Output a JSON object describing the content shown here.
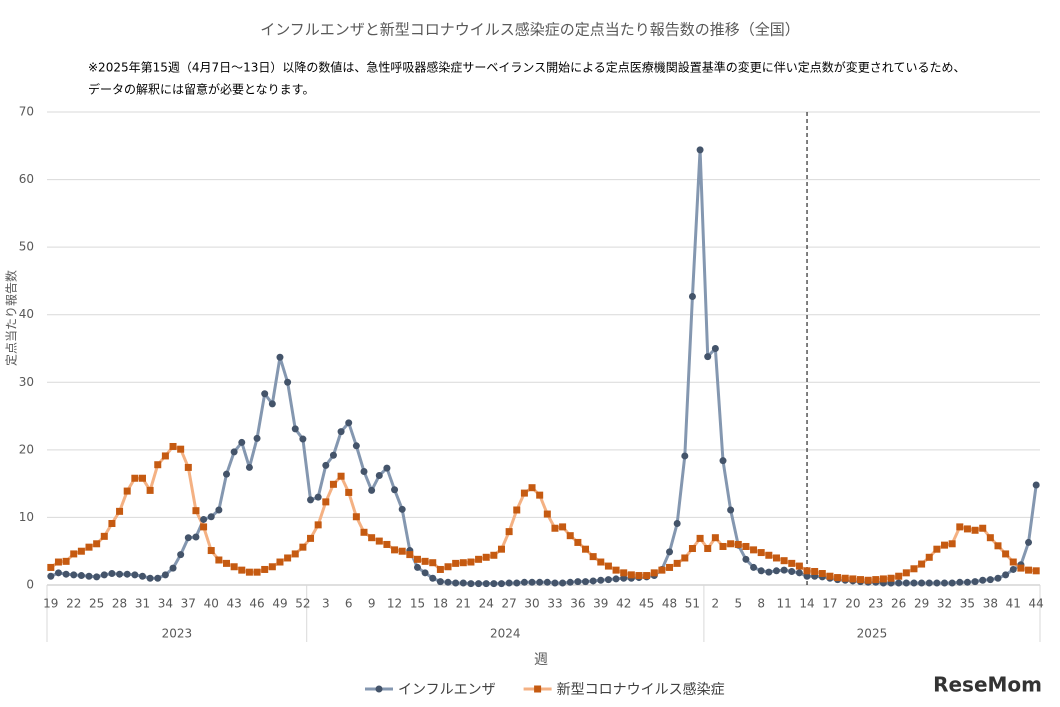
{
  "chart_data": {
    "type": "line",
    "title": "インフルエンザと新型コロナウイルス感染症の定点当たり報告数の推移（全国）",
    "notes": [
      "※2025年第15週（4月7日～13日）以降の数値は、急性呼吸器感染症サーベイランス開始による定点医療機関設置基準の変更に伴い定点数が変更されているため、",
      "データの解釈には留意が必要となります。"
    ],
    "y_label": "定点当たり報告数",
    "x_label": "週",
    "watermark": "ReseMom",
    "groups": [
      "2023",
      "2024",
      "2025"
    ],
    "vline": {
      "year": "2025",
      "week": "14"
    },
    "categories": [
      "19",
      null,
      null,
      "22",
      null,
      null,
      "25",
      null,
      null,
      "28",
      null,
      null,
      "31",
      null,
      null,
      "34",
      null,
      null,
      "37",
      null,
      null,
      "40",
      null,
      null,
      "43",
      null,
      null,
      "46",
      null,
      null,
      "49",
      null,
      null,
      "52",
      null,
      null,
      "3",
      null,
      null,
      "6",
      null,
      null,
      "9",
      null,
      null,
      "12",
      null,
      null,
      "15",
      null,
      null,
      "18",
      null,
      null,
      "21",
      null,
      null,
      "24",
      null,
      null,
      "27",
      null,
      null,
      "30",
      null,
      null,
      "33",
      null,
      null,
      "36",
      null,
      null,
      "39",
      null,
      null,
      "42",
      null,
      null,
      "45",
      null,
      null,
      "48",
      null,
      null,
      "51",
      null,
      null,
      "2",
      null,
      null,
      "5",
      null,
      null,
      "8",
      null,
      null,
      "11",
      null,
      null,
      "14",
      null,
      null,
      "17",
      null,
      null,
      "20",
      null,
      null,
      "23",
      null,
      null,
      "26",
      null,
      null,
      "29",
      null,
      null,
      "32",
      null,
      null,
      "35",
      null,
      null,
      "38",
      null,
      null,
      "41",
      null,
      null,
      "44"
    ],
    "series": [
      {
        "name": "インフルエンザ",
        "color": "#8497b0",
        "marker_color": "#44546a",
        "marker": "circle",
        "values": [
          1.3,
          1.8,
          1.6,
          1.5,
          1.4,
          1.3,
          1.2,
          1.5,
          1.7,
          1.6,
          1.6,
          1.5,
          1.3,
          1.0,
          1.0,
          1.5,
          2.5,
          4.5,
          7.0,
          7.1,
          9.7,
          10.1,
          11.1,
          16.4,
          19.7,
          21.1,
          17.4,
          21.7,
          28.3,
          26.8,
          33.7,
          30.0,
          23.1,
          21.6,
          12.6,
          13.0,
          17.7,
          19.2,
          22.7,
          24.0,
          20.6,
          16.8,
          14.0,
          16.2,
          17.3,
          14.1,
          11.2,
          5.1,
          2.6,
          1.8,
          1.0,
          0.5,
          0.4,
          0.3,
          0.3,
          0.2,
          0.2,
          0.2,
          0.2,
          0.2,
          0.3,
          0.3,
          0.4,
          0.4,
          0.4,
          0.4,
          0.3,
          0.3,
          0.4,
          0.5,
          0.5,
          0.6,
          0.7,
          0.8,
          0.9,
          1.0,
          1.0,
          1.1,
          1.2,
          1.4,
          2.3,
          4.9,
          9.1,
          19.1,
          42.7,
          64.4,
          33.8,
          35.0,
          18.4,
          11.1,
          5.9,
          3.8,
          2.6,
          2.1,
          1.9,
          2.1,
          2.2,
          2.0,
          1.8,
          1.3,
          1.3,
          1.2,
          1.0,
          0.8,
          0.7,
          0.6,
          0.5,
          0.4,
          0.4,
          0.3,
          0.3,
          0.3,
          0.3,
          0.3,
          0.3,
          0.3,
          0.3,
          0.3,
          0.3,
          0.4,
          0.4,
          0.5,
          0.7,
          0.8,
          1.0,
          1.5,
          2.3,
          3.0,
          6.3,
          14.8
        ]
      },
      {
        "name": "新型コロナウイルス感染症",
        "color": "#f4b183",
        "marker_color": "#c55a11",
        "marker": "square",
        "values": [
          2.6,
          3.4,
          3.5,
          4.6,
          5.0,
          5.6,
          6.1,
          7.2,
          9.1,
          10.9,
          13.9,
          15.8,
          15.8,
          14.0,
          17.8,
          19.1,
          20.5,
          20.1,
          17.4,
          11.0,
          8.6,
          5.1,
          3.7,
          3.2,
          2.7,
          2.2,
          1.9,
          1.9,
          2.3,
          2.7,
          3.4,
          4.0,
          4.6,
          5.6,
          6.9,
          8.9,
          12.3,
          14.9,
          16.1,
          13.7,
          10.1,
          7.8,
          7.0,
          6.5,
          6.0,
          5.2,
          5.0,
          4.5,
          3.8,
          3.5,
          3.3,
          2.3,
          2.7,
          3.2,
          3.3,
          3.4,
          3.8,
          4.1,
          4.4,
          5.3,
          7.9,
          11.1,
          13.6,
          14.4,
          13.3,
          10.5,
          8.4,
          8.6,
          7.3,
          6.3,
          5.3,
          4.2,
          3.4,
          2.8,
          2.2,
          1.8,
          1.5,
          1.4,
          1.4,
          1.8,
          2.2,
          2.6,
          3.2,
          4.0,
          5.4,
          6.9,
          5.4,
          7.0,
          5.7,
          6.1,
          6.0,
          5.7,
          5.2,
          4.8,
          4.4,
          4.0,
          3.6,
          3.2,
          2.8,
          2.1,
          2.0,
          1.7,
          1.3,
          1.1,
          1.0,
          0.9,
          0.8,
          0.7,
          0.8,
          0.9,
          1.0,
          1.3,
          1.8,
          2.4,
          3.1,
          4.1,
          5.3,
          5.9,
          6.1,
          8.6,
          8.3,
          8.1,
          8.4,
          7.0,
          5.8,
          4.6,
          3.4,
          2.5,
          2.2,
          2.1
        ]
      }
    ],
    "ylim": [
      0,
      70
    ],
    "yticks": [
      0,
      10,
      20,
      30,
      40,
      50,
      60,
      70
    ],
    "grid": true,
    "legend": "bottom"
  }
}
